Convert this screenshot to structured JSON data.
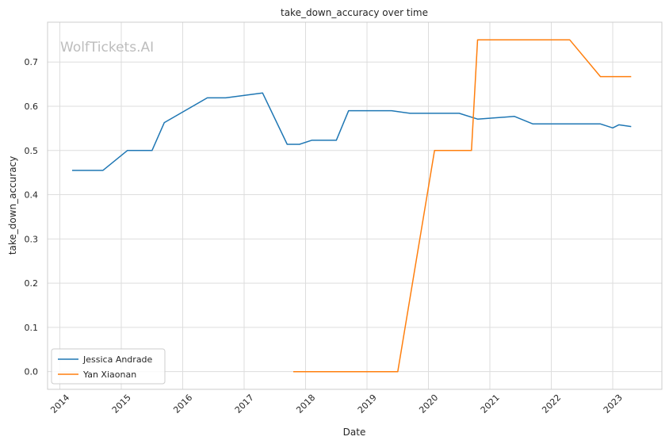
{
  "chart_data": {
    "type": "line",
    "title": "take_down_accuracy over time",
    "xlabel": "Date",
    "ylabel": "take_down_accuracy",
    "watermark": "WolfTickets.AI",
    "x_ticks": [
      "2014",
      "2015",
      "2016",
      "2017",
      "2018",
      "2019",
      "2020",
      "2021",
      "2022",
      "2023"
    ],
    "y_ticks": [
      "0.0",
      "0.1",
      "0.2",
      "0.3",
      "0.4",
      "0.5",
      "0.6",
      "0.7"
    ],
    "xlim": [
      2013.8,
      2023.8
    ],
    "ylim": [
      -0.04,
      0.79
    ],
    "grid": true,
    "legend_position": "lower-left",
    "series": [
      {
        "name": "Jessica Andrade",
        "color": "#1f77b4",
        "x": [
          2014.2,
          2014.7,
          2015.1,
          2015.5,
          2015.7,
          2016.4,
          2016.7,
          2017.3,
          2017.7,
          2017.9,
          2018.1,
          2018.5,
          2018.7,
          2019.4,
          2019.7,
          2020.5,
          2020.8,
          2021.4,
          2021.7,
          2022.3,
          2022.8,
          2023.0,
          2023.1,
          2023.3
        ],
        "y": [
          0.455,
          0.455,
          0.5,
          0.5,
          0.563,
          0.619,
          0.619,
          0.63,
          0.514,
          0.514,
          0.523,
          0.523,
          0.59,
          0.59,
          0.584,
          0.584,
          0.571,
          0.577,
          0.56,
          0.56,
          0.56,
          0.551,
          0.558,
          0.554
        ]
      },
      {
        "name": "Yan Xiaonan",
        "color": "#ff7f0e",
        "x": [
          2017.8,
          2019.5,
          2020.1,
          2020.7,
          2020.8,
          2022.3,
          2022.8,
          2023.3
        ],
        "y": [
          0.0,
          0.0,
          0.5,
          0.5,
          0.75,
          0.75,
          0.667,
          0.667
        ]
      }
    ]
  }
}
